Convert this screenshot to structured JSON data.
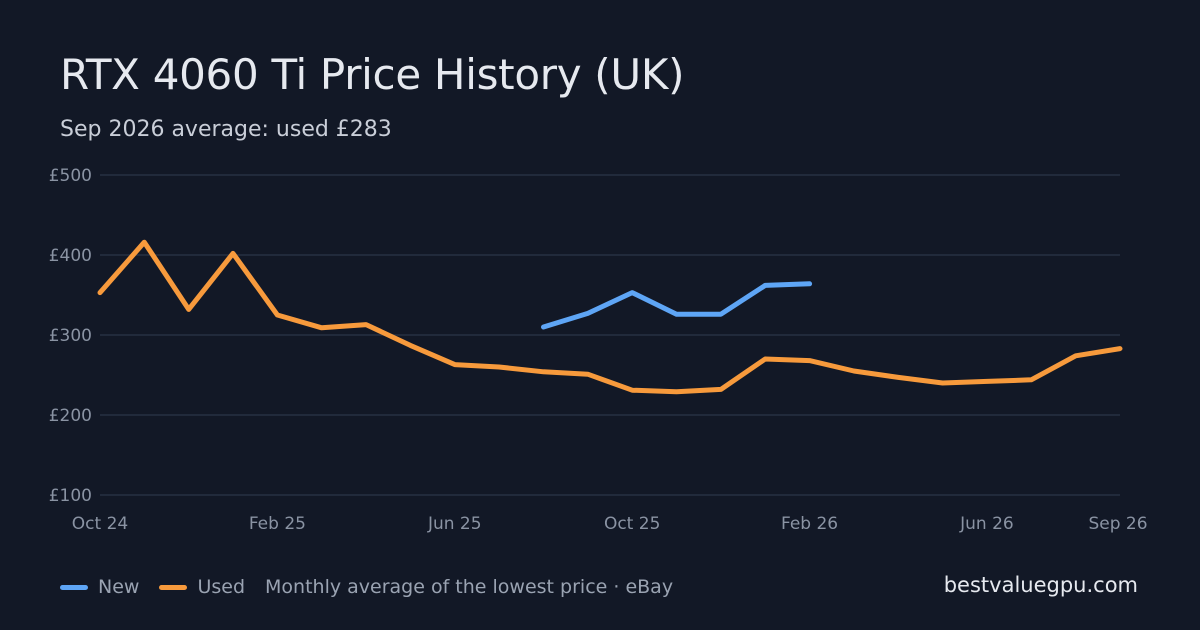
{
  "chart_data": {
    "type": "line",
    "title": "RTX 4060 Ti Price History (UK)",
    "subtitle": "Sep 2026 average: used £283",
    "x": [
      "Oct 24",
      "Nov 24",
      "Dec 24",
      "Jan 25",
      "Feb 25",
      "Mar 25",
      "Apr 25",
      "May 25",
      "Jun 25",
      "Jul 25",
      "Aug 25",
      "Sep 25",
      "Oct 25",
      "Nov 25",
      "Dec 25",
      "Jan 26",
      "Feb 26",
      "Mar 26",
      "Apr 26",
      "May 26",
      "Jun 26",
      "Jul 26",
      "Aug 26",
      "Sep 26"
    ],
    "x_tick_labels": [
      "Oct 24",
      "Feb 25",
      "Jun 25",
      "Oct 25",
      "Feb 26",
      "Jun 26",
      "Sep 26"
    ],
    "y_tick_labels": [
      "£500",
      "£400",
      "£300",
      "£200",
      "£100"
    ],
    "ylim": [
      100,
      500
    ],
    "y_ticks": [
      100,
      200,
      300,
      400,
      500
    ],
    "grid": true,
    "legend_position": "bottom-left",
    "series": [
      {
        "name": "New",
        "color": "#5ea5f5",
        "values": [
          null,
          null,
          null,
          null,
          null,
          null,
          null,
          null,
          null,
          null,
          310,
          327,
          353,
          326,
          326,
          362,
          364,
          null,
          null,
          null,
          null,
          null,
          null,
          null
        ]
      },
      {
        "name": "Used",
        "color": "#f79a3c",
        "values": [
          353,
          416,
          332,
          402,
          325,
          309,
          313,
          287,
          263,
          260,
          254,
          251,
          231,
          229,
          232,
          270,
          268,
          255,
          247,
          240,
          242,
          244,
          274,
          283
        ]
      }
    ],
    "note": "Monthly average of the lowest price · eBay",
    "source": "bestvaluegpu.com"
  }
}
